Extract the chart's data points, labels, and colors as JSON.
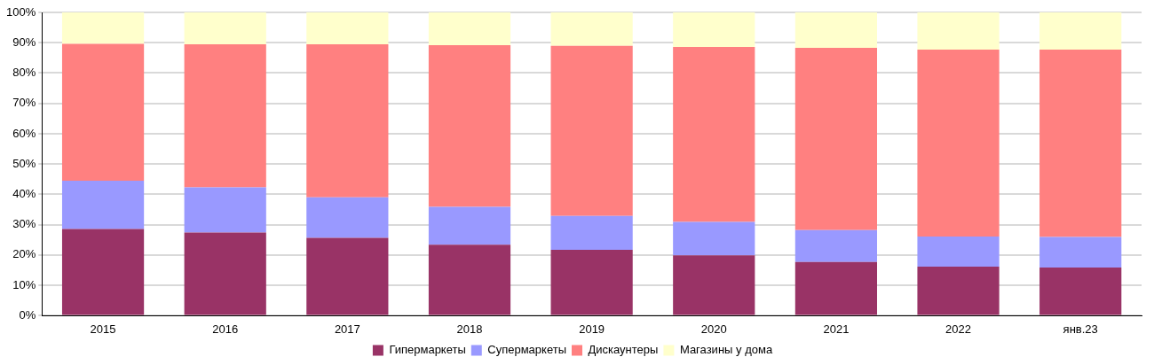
{
  "chart_data": {
    "type": "bar",
    "stacked": true,
    "categories": [
      "2015",
      "2016",
      "2017",
      "2018",
      "2019",
      "2020",
      "2021",
      "2022",
      "янв.23"
    ],
    "series": [
      {
        "name": "Гипермаркеты",
        "color": "#993366",
        "values": [
          28.6,
          27.4,
          25.7,
          23.4,
          21.7,
          19.9,
          17.7,
          16.2,
          15.9
        ]
      },
      {
        "name": "Супермаркеты",
        "color": "#9999ff",
        "values": [
          15.9,
          14.9,
          13.3,
          12.5,
          11.2,
          11.0,
          10.5,
          9.9,
          10.1
        ]
      },
      {
        "name": "Дискаунтеры",
        "color": "#ff8080",
        "values": [
          45.1,
          47.2,
          50.5,
          53.3,
          56.1,
          57.7,
          60.1,
          61.6,
          61.7
        ]
      },
      {
        "name": "Магазины у дома",
        "color": "#ffffcc",
        "values": [
          10.4,
          10.5,
          10.5,
          10.8,
          11.0,
          11.4,
          11.7,
          12.3,
          12.3
        ]
      }
    ],
    "ylim": [
      0,
      100
    ],
    "yticks": [
      {
        "value": 0,
        "label": "0%"
      },
      {
        "value": 10,
        "label": "10%"
      },
      {
        "value": 20,
        "label": "20%"
      },
      {
        "value": 30,
        "label": "30%"
      },
      {
        "value": 40,
        "label": "40%"
      },
      {
        "value": 50,
        "label": "50%"
      },
      {
        "value": 60,
        "label": "60%"
      },
      {
        "value": 70,
        "label": "70%"
      },
      {
        "value": 80,
        "label": "80%"
      },
      {
        "value": 90,
        "label": "90%"
      },
      {
        "value": 100,
        "label": "100%"
      }
    ],
    "grid": "y",
    "legend": "bottom"
  }
}
